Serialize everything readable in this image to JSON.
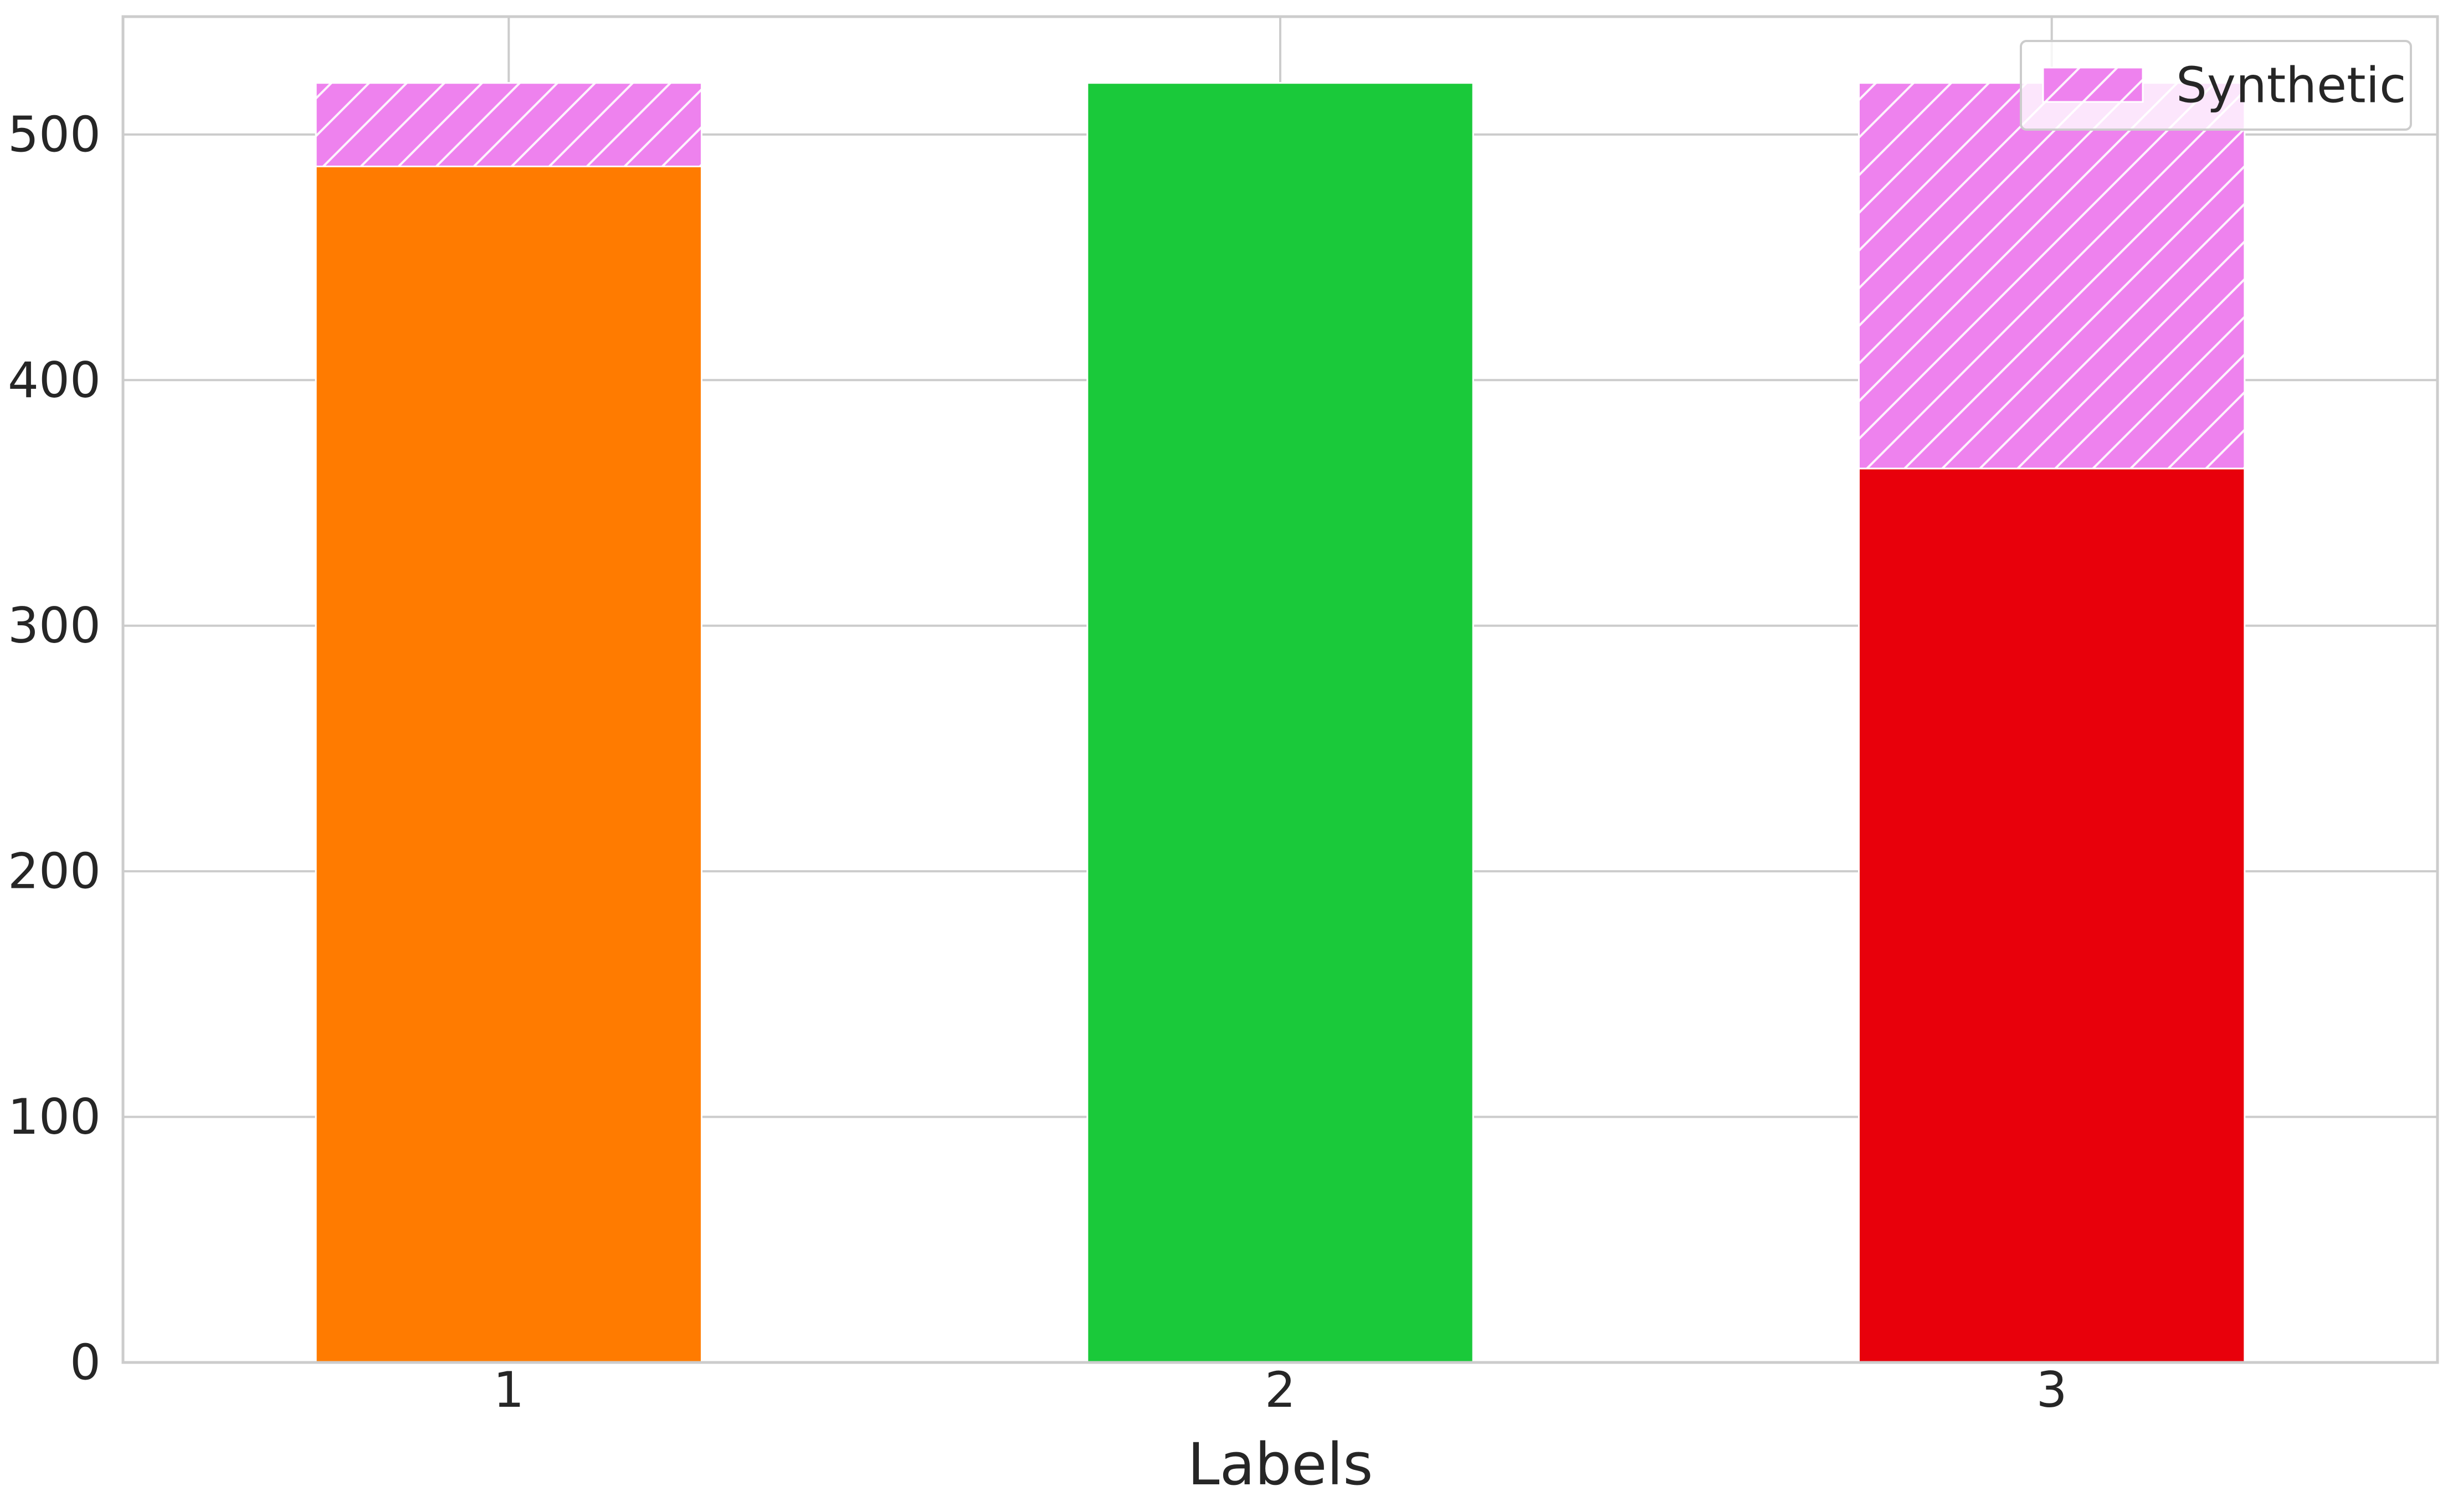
{
  "chart_data": {
    "type": "bar",
    "stacked": true,
    "title": "",
    "xlabel": "Labels",
    "ylabel": "",
    "categories": [
      "1",
      "2",
      "3"
    ],
    "ylim": [
      0,
      548
    ],
    "yticks": [
      0,
      100,
      200,
      300,
      400,
      500
    ],
    "grid": true,
    "legend_position": "top-right",
    "series": [
      {
        "role": "original",
        "values": [
          487,
          521,
          364
        ],
        "colors": [
          "#ff7b00",
          "#1ac93a",
          "#e8000b"
        ]
      },
      {
        "name": "Synthetic",
        "values": [
          34,
          0,
          157
        ],
        "color": "#ee82ee",
        "hatch": "diagonal"
      }
    ]
  }
}
